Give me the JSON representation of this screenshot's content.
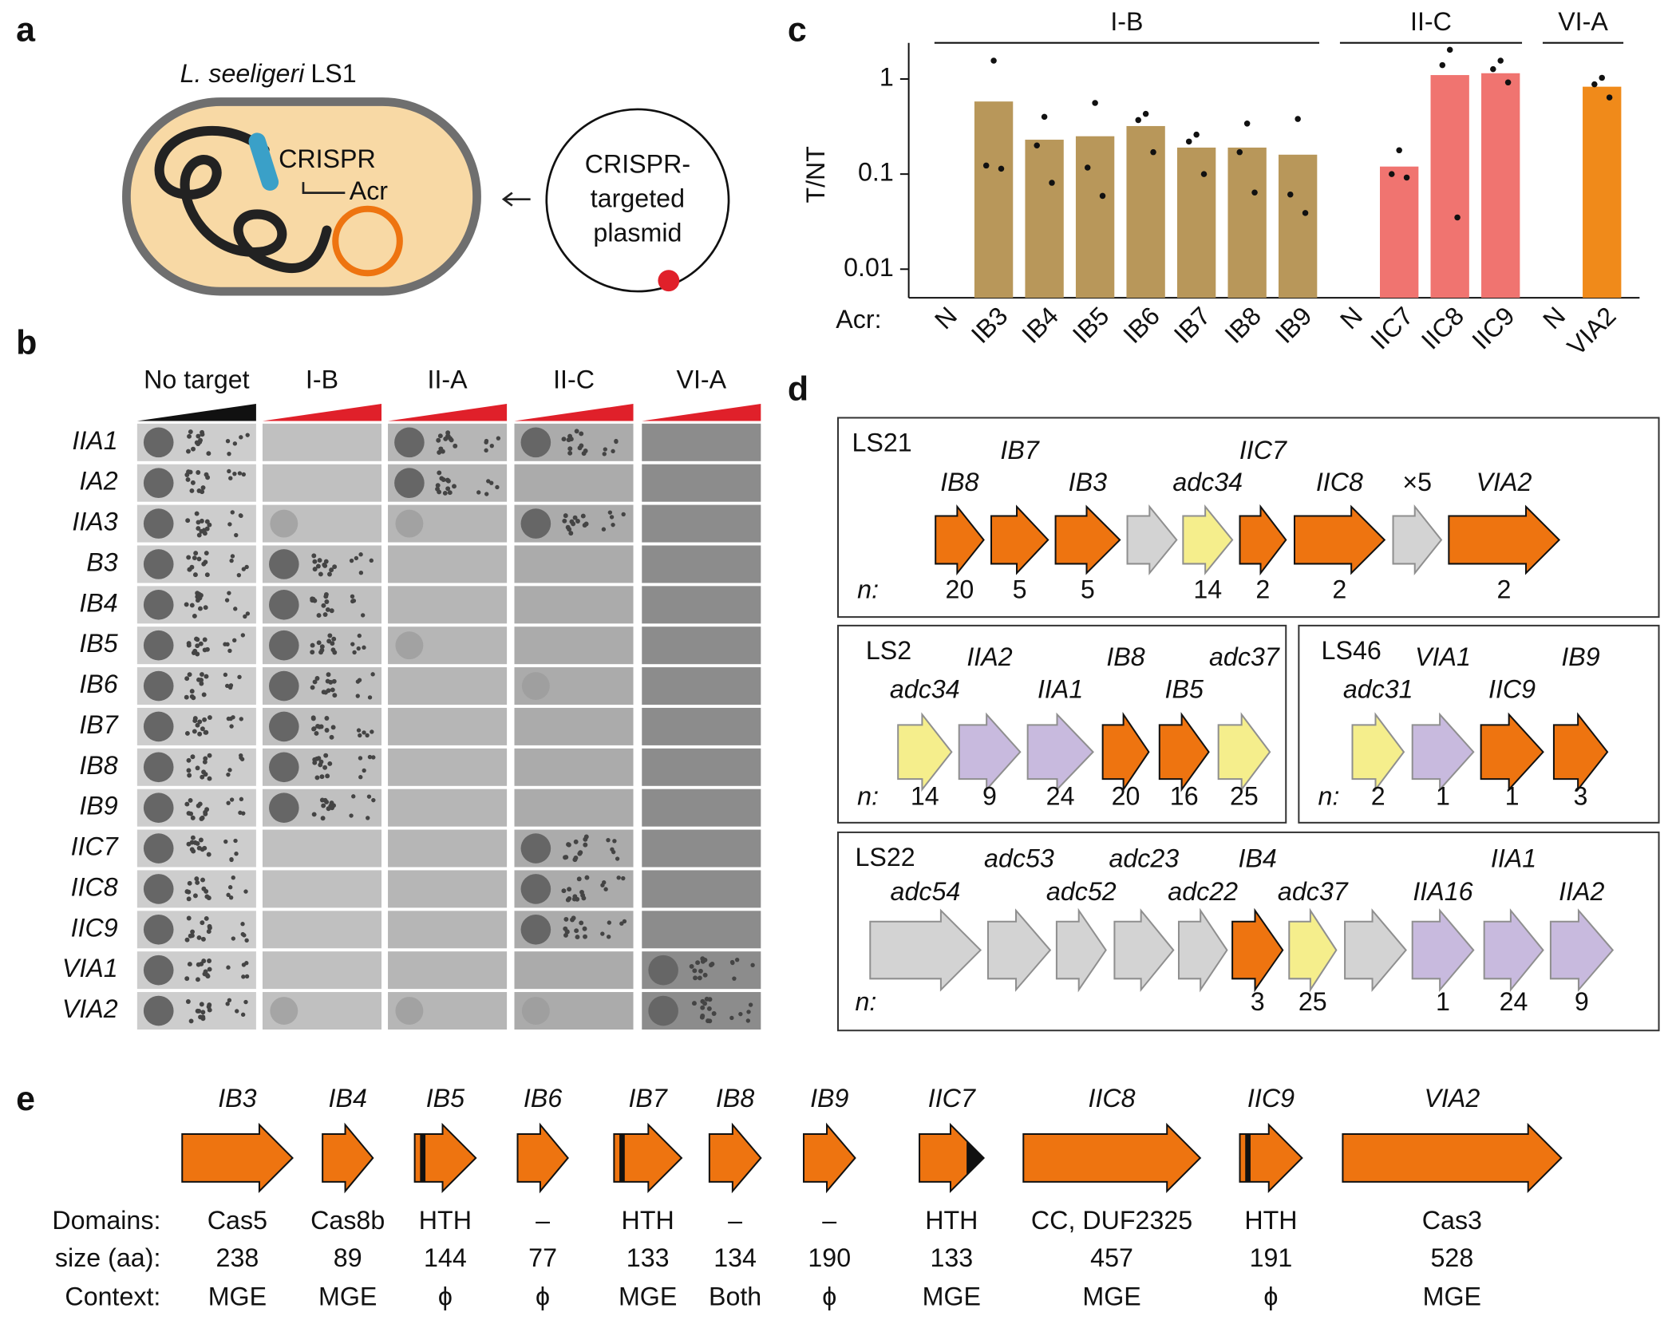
{
  "panels": [
    "a",
    "b",
    "c",
    "d",
    "e"
  ],
  "panel_a": {
    "organism": "L. seeligeri",
    "strain": "LS1",
    "chromosome_labels": [
      "CRISPR",
      "Acr"
    ],
    "plasmid": [
      "CRISPR-",
      "targeted",
      "plasmid"
    ]
  },
  "panel_b": {
    "columns": [
      "No target",
      "I-B",
      "II-A",
      "II-C",
      "VI-A"
    ],
    "rows": [
      "IIA1",
      "IA2",
      "IIA3",
      "B3",
      "IB4",
      "IB5",
      "IB6",
      "IB7",
      "IB8",
      "IB9",
      "IIC7",
      "IIC8",
      "IIC9",
      "VIA1",
      "VIA2"
    ]
  },
  "chart_data": {
    "type": "bar",
    "log_scale": true,
    "y_label": "T/NT",
    "x_label": "Acr:",
    "categories": [
      "N",
      "IB3",
      "IB4",
      "IB5",
      "IB6",
      "IB7",
      "IB8",
      "IB9",
      "N",
      "IIC7",
      "IIC8",
      "IIC9",
      "N",
      "VIA2"
    ],
    "series": [
      {
        "name": "I-B",
        "color": "#b8975a",
        "values": [
          null,
          0.58,
          0.23,
          0.25,
          0.32,
          0.19,
          0.19,
          0.16,
          null,
          null,
          null,
          null,
          null,
          null
        ],
        "points": [
          null,
          [
            1.56,
            0.123,
            0.114
          ],
          [
            0.4,
            0.2,
            0.081
          ],
          [
            0.56,
            0.117,
            0.059
          ],
          [
            0.43,
            0.37,
            0.17
          ],
          [
            0.26,
            0.22,
            0.1
          ],
          [
            0.34,
            0.17,
            0.064
          ],
          [
            0.38,
            0.061,
            0.039
          ],
          null,
          null,
          null,
          null,
          null,
          null
        ]
      },
      {
        "name": "II-C",
        "color": "#f07470",
        "values": [
          null,
          null,
          null,
          null,
          null,
          null,
          null,
          null,
          null,
          0.12,
          1.1,
          1.15,
          null,
          null
        ],
        "points": [
          null,
          null,
          null,
          null,
          null,
          null,
          null,
          null,
          null,
          [
            0.178,
            0.1,
            0.092
          ],
          [
            2.03,
            1.4,
            0.035
          ],
          [
            1.56,
            1.27,
            0.92
          ],
          null,
          null
        ]
      },
      {
        "name": "VI-A",
        "color": "#f08a1a",
        "values": [
          null,
          null,
          null,
          null,
          null,
          null,
          null,
          null,
          null,
          null,
          null,
          null,
          null,
          0.83
        ],
        "points": [
          null,
          null,
          null,
          null,
          null,
          null,
          null,
          null,
          null,
          null,
          null,
          null,
          null,
          [
            1.03,
            0.88,
            0.64
          ]
        ]
      }
    ],
    "ylim": [
      0.005,
      2.4
    ],
    "yticks": [
      1,
      0.1,
      0.01
    ]
  },
  "panel_d": {
    "n_label": "n:",
    "loci": [
      {
        "name": "LS21",
        "genes": [
          {
            "label": "IB8",
            "color": "#ee7410",
            "n": 20
          },
          {
            "label": "IB7",
            "color": "#ee7410",
            "n": 5
          },
          {
            "label": "IB3",
            "color": "#ee7410",
            "n": 5
          },
          {
            "label": null,
            "color": "#d3d3d3",
            "n": null
          },
          {
            "label": "adc34",
            "color": "#f5ee8c",
            "n": 14
          },
          {
            "label": "IIC7",
            "color": "#ee7410",
            "n": 2
          },
          {
            "label": "IIC8",
            "color": "#ee7410",
            "n": 2
          },
          {
            "label": "×5",
            "color": "#d3d3d3",
            "n": null
          },
          {
            "label": "VIA2",
            "color": "#ee7410",
            "n": 2
          }
        ]
      },
      {
        "name": "LS2",
        "genes": [
          {
            "label": "adc34",
            "color": "#f5ee8c",
            "n": 14
          },
          {
            "label": "IIA2",
            "color": "#c8bade",
            "n": 9
          },
          {
            "label": "IIA1",
            "color": "#c8bade",
            "n": 24
          },
          {
            "label": "IB8",
            "color": "#ee7410",
            "n": 20
          },
          {
            "label": "IB5",
            "color": "#ee7410",
            "n": 16
          },
          {
            "label": "adc37",
            "color": "#f5ee8c",
            "n": 25
          }
        ]
      },
      {
        "name": "LS46",
        "genes": [
          {
            "label": "adc31",
            "color": "#f5ee8c",
            "n": 2
          },
          {
            "label": "VIA1",
            "color": "#c8bade",
            "n": 1
          },
          {
            "label": "IIC9",
            "color": "#ee7410",
            "n": 1
          },
          {
            "label": "IB9",
            "color": "#ee7410",
            "n": 3
          }
        ]
      },
      {
        "name": "LS22",
        "genes": [
          {
            "label": "adc54",
            "color": "#d3d3d3",
            "n": null
          },
          {
            "label": "adc53",
            "color": "#d3d3d3",
            "n": null
          },
          {
            "label": "adc52",
            "color": "#d3d3d3",
            "n": null
          },
          {
            "label": "adc23",
            "color": "#d3d3d3",
            "n": null
          },
          {
            "label": "adc22",
            "color": "#d3d3d3",
            "n": null
          },
          {
            "label": "IB4",
            "color": "#ee7410",
            "n": 3
          },
          {
            "label": "adc37",
            "color": "#f5ee8c",
            "n": 25
          },
          {
            "label": null,
            "color": "#d3d3d3",
            "n": null
          },
          {
            "label": "IIA16",
            "color": "#c8bade",
            "n": 1
          },
          {
            "label": "IIA1",
            "color": "#c8bade",
            "n": 24
          },
          {
            "label": "IIA2",
            "color": "#c8bade",
            "n": 9
          }
        ]
      }
    ]
  },
  "panel_e": {
    "row_labels": [
      "Domains:",
      "size (aa):",
      "Context:"
    ],
    "color": "#ee7410",
    "genes": [
      {
        "label": "IB3",
        "domain": "Cas5",
        "size": 238,
        "context": "MGE"
      },
      {
        "label": "IB4",
        "domain": "Cas8b",
        "size": 89,
        "context": "MGE"
      },
      {
        "label": "IB5",
        "domain": "HTH",
        "size": 144,
        "context": "ϕ"
      },
      {
        "label": "IB6",
        "domain": "–",
        "size": 77,
        "context": "ϕ"
      },
      {
        "label": "IB7",
        "domain": "HTH",
        "size": 133,
        "context": "MGE"
      },
      {
        "label": "IB8",
        "domain": "–",
        "size": 134,
        "context": "Both"
      },
      {
        "label": "IB9",
        "domain": "–",
        "size": 190,
        "context": "ϕ"
      },
      {
        "label": "IIC7",
        "domain": "HTH",
        "size": 133,
        "context": "MGE"
      },
      {
        "label": "IIC8",
        "domain": "CC, DUF2325",
        "size": 457,
        "context": "MGE"
      },
      {
        "label": "IIC9",
        "domain": "HTH",
        "size": 191,
        "context": "ϕ"
      },
      {
        "label": "VIA2",
        "domain": "Cas3",
        "size": 528,
        "context": "MGE"
      }
    ]
  }
}
